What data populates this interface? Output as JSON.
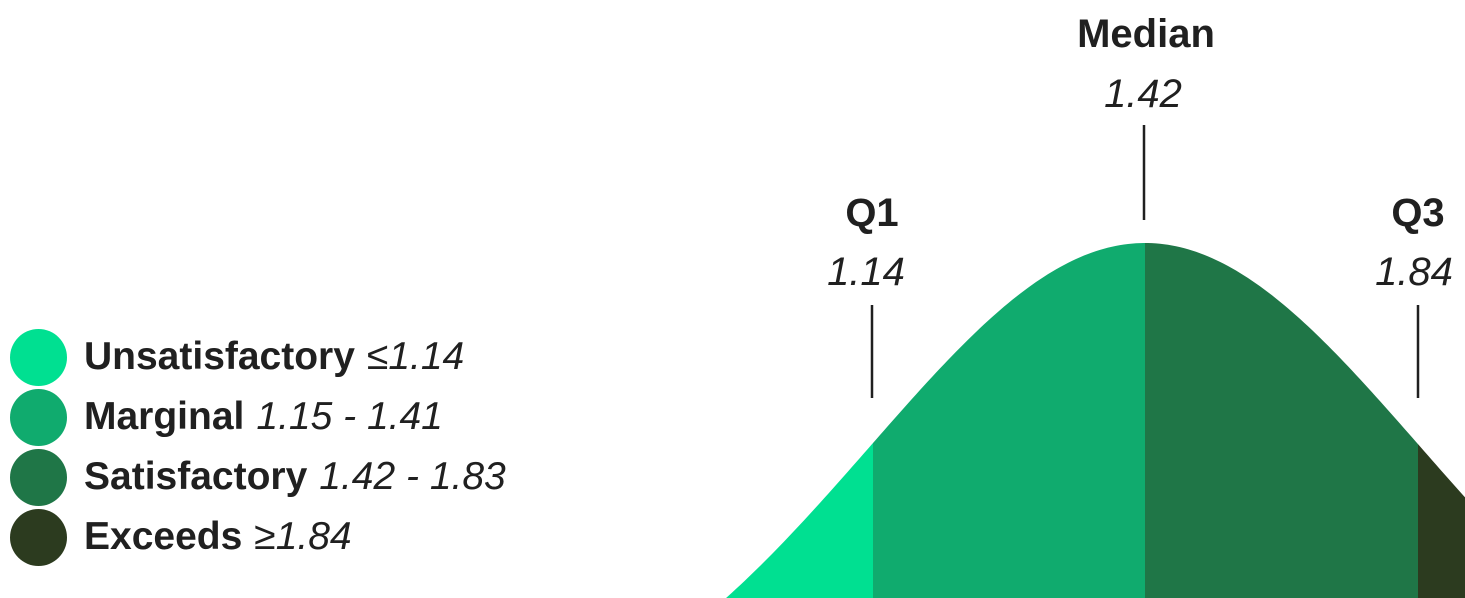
{
  "legend": [
    {
      "label": "Unsatisfactory",
      "range": "≤1.14",
      "color": "#00E091"
    },
    {
      "label": "Marginal",
      "range": "1.15 - 1.41",
      "color": "#10AB6E"
    },
    {
      "label": "Satisfactory",
      "range": "1.42 - 1.83",
      "color": "#1F7647"
    },
    {
      "label": "Exceeds",
      "range": "≥1.84",
      "color": "#2C3B1F"
    }
  ],
  "chart_data": {
    "type": "area",
    "title": "",
    "xlabel": "",
    "ylabel": "",
    "distribution": "normal",
    "markers": [
      {
        "name": "Q1",
        "value": "1.14",
        "x": 1.14
      },
      {
        "name": "Median",
        "value": "1.42",
        "x": 1.42
      },
      {
        "name": "Q3",
        "value": "1.84",
        "x": 1.84
      }
    ],
    "regions": [
      {
        "label": "Unsatisfactory",
        "to": 1.14,
        "color": "#00E091"
      },
      {
        "label": "Marginal",
        "from": 1.15,
        "to": 1.41,
        "color": "#10AB6E"
      },
      {
        "label": "Satisfactory",
        "from": 1.42,
        "to": 1.83,
        "color": "#1F7647"
      },
      {
        "label": "Exceeds",
        "from": 1.84,
        "color": "#2C3B1F"
      }
    ]
  }
}
